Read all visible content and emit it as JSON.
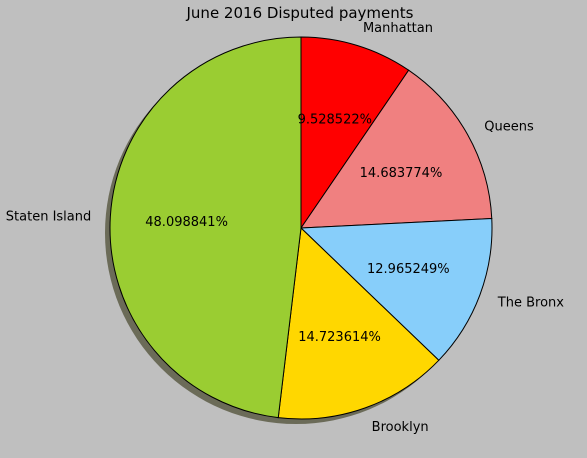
{
  "chart_data": {
    "type": "pie",
    "title": "June 2016 Disputed payments",
    "shadow": true,
    "start_angle_deg": 90,
    "direction": "clockwise",
    "slices": [
      {
        "label": "Manhattan",
        "value": 9.528522,
        "pct_label": "9.528522%",
        "color": "#ff0000"
      },
      {
        "label": "Queens",
        "value": 14.683774,
        "pct_label": "14.683774%",
        "color": "#f08080"
      },
      {
        "label": "The Bronx",
        "value": 12.965249,
        "pct_label": "12.965249%",
        "color": "#87cefa"
      },
      {
        "label": "Brooklyn",
        "value": 14.723614,
        "pct_label": "14.723614%",
        "color": "#ffd700"
      },
      {
        "label": "Staten Island",
        "value": 48.098841,
        "pct_label": "48.098841%",
        "color": "#9acd32"
      }
    ]
  },
  "colors": {
    "background": "#bfbfbf",
    "edge": "#000000",
    "shadow": "#6b6b58"
  }
}
